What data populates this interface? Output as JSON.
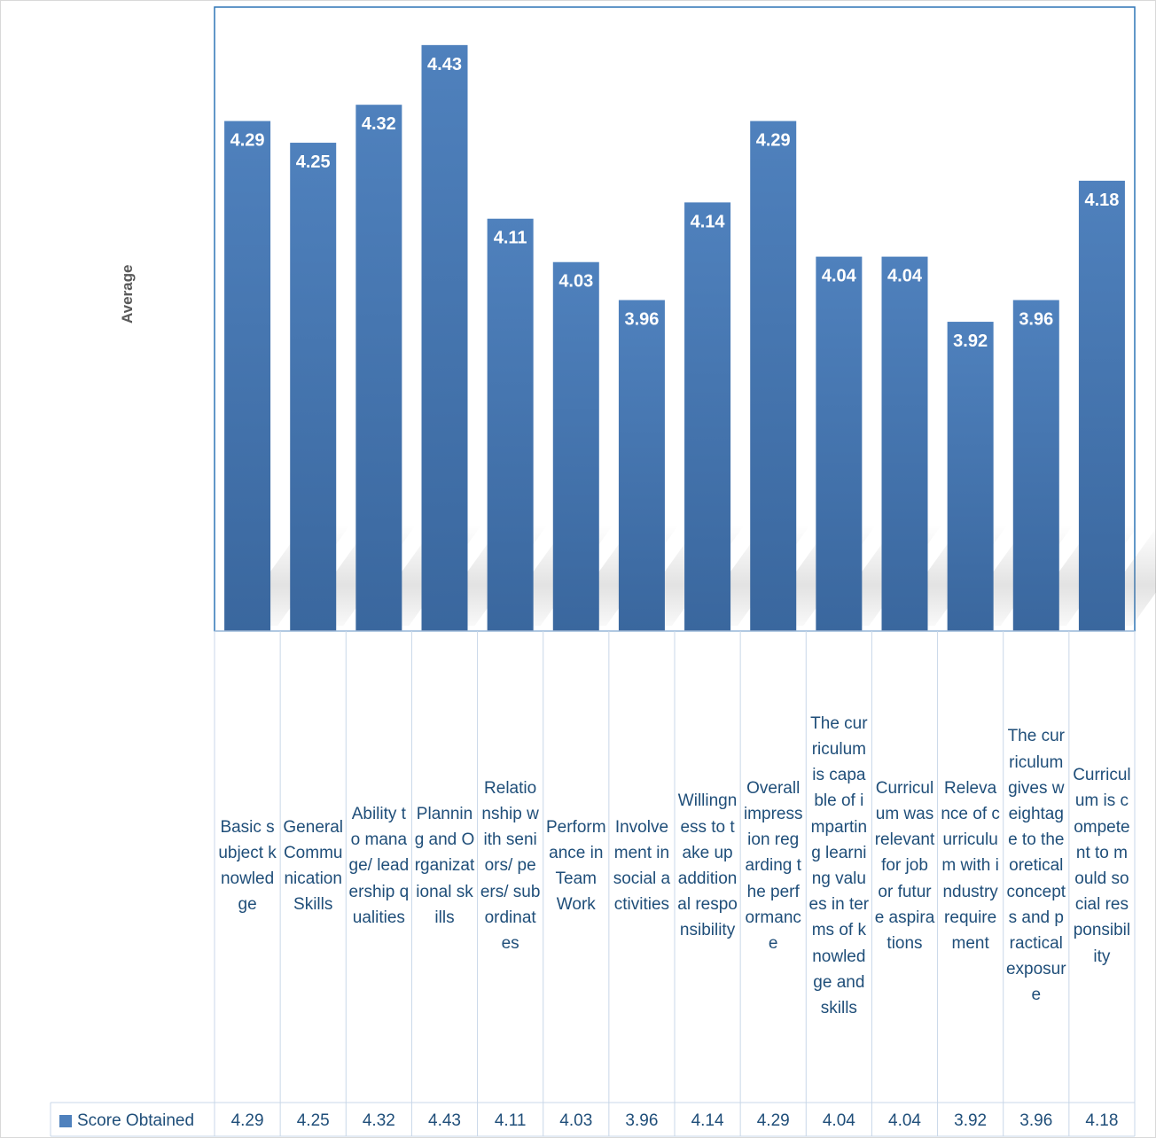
{
  "chart_data": {
    "type": "bar",
    "ylabel": "Average",
    "ylim": [
      3.35,
      4.5
    ],
    "categories": [
      "Basic subject knowledge",
      "General Communication Skills",
      "Ability to manage/ leadership qualities",
      "Planning and Organizational skills",
      "Relationship with seniors/ peers/ subordinates",
      "Performance in Team Work",
      "Involvement in social activities",
      "Willingness to take up additional responsibility",
      "Overall impression regarding the performance",
      "The curriculum is capable of imparting learning values in terms of knowledge and skills",
      "Curriculum was relevant for job or future aspirations",
      "Relevance of curriculum with industry requirement",
      "The curriculum gives weightage to theoretical concepts and practical exposure",
      "Curriculum is competent to mould social responsibility"
    ],
    "series": [
      {
        "name": "Score Obtained",
        "values": [
          4.29,
          4.25,
          4.32,
          4.43,
          4.11,
          4.03,
          3.96,
          4.14,
          4.29,
          4.04,
          4.04,
          3.92,
          3.96,
          4.18
        ],
        "labels": [
          "4.29",
          "4.25",
          "4.32",
          "4.43",
          "4.11",
          "4.03",
          "3.96",
          "4.14",
          "4.29",
          "4.04",
          "4.04",
          "3.92",
          "3.96",
          "4.18"
        ]
      }
    ],
    "data_table": true,
    "legend_position": "data-table-left",
    "grid": false,
    "colors": {
      "bar": "#4f81bd",
      "bar_dark": "#3a679e",
      "frame": "#2e75b6",
      "text": "#1f4e79"
    }
  }
}
